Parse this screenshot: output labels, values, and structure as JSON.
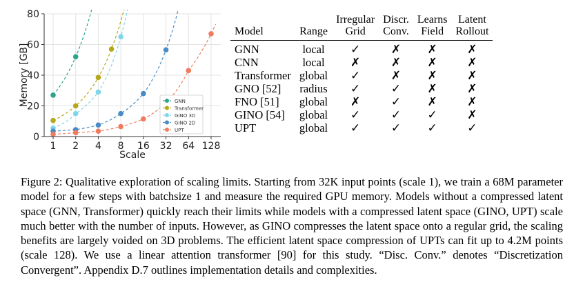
{
  "chart_data": {
    "type": "line",
    "xlabel": "Scale",
    "ylabel": "Memory [GB]",
    "x": [
      1,
      2,
      4,
      8,
      16,
      32,
      64,
      128
    ],
    "x_scale": "log2",
    "xtick_labels": [
      "1",
      "2",
      "4",
      "8",
      "16",
      "32",
      "64",
      "128"
    ],
    "ylim": [
      0,
      80
    ],
    "yticks": [
      0,
      20,
      40,
      60,
      80
    ],
    "legend_position": "lower-right",
    "series": [
      {
        "name": "GNN",
        "color": "#2ca58d",
        "x": [
          1,
          2
        ],
        "values": [
          27,
          52
        ]
      },
      {
        "name": "Transformer",
        "color": "#b5a718",
        "x": [
          1,
          2,
          4,
          6
        ],
        "values": [
          10.5,
          20,
          38.5,
          57
        ]
      },
      {
        "name": "GINO 3D",
        "color": "#7fd6ea",
        "x": [
          1,
          2,
          4,
          8
        ],
        "values": [
          5.5,
          15,
          29,
          65
        ]
      },
      {
        "name": "GINO 2D",
        "color": "#4a8bc6",
        "x": [
          1,
          2,
          4,
          8,
          16,
          32
        ],
        "values": [
          3.5,
          4.5,
          7.5,
          15,
          28,
          56.5
        ]
      },
      {
        "name": "UPT",
        "color": "#f07b5f",
        "x": [
          1,
          2,
          4,
          8,
          16,
          32,
          64,
          128
        ],
        "values": [
          1.5,
          2.5,
          3.5,
          6.5,
          11.5,
          22,
          43,
          67
        ]
      }
    ]
  },
  "table": {
    "headers": [
      {
        "line1": "Model",
        "line2": ""
      },
      {
        "line1": "Range",
        "line2": ""
      },
      {
        "line1": "Irregular",
        "line2": "Grid"
      },
      {
        "line1": "Discr.",
        "line2": "Conv."
      },
      {
        "line1": "Learns",
        "line2": "Field"
      },
      {
        "line1": "Latent",
        "line2": "Rollout"
      }
    ],
    "rows": [
      [
        "GNN",
        "local",
        "✓",
        "✗",
        "✗",
        "✗"
      ],
      [
        "CNN",
        "local",
        "✗",
        "✗",
        "✗",
        "✗"
      ],
      [
        "Transformer",
        "global",
        "✓",
        "✗",
        "✗",
        "✗"
      ],
      [
        "GNO [52]",
        "radius",
        "✓",
        "✓",
        "✗",
        "✗"
      ],
      [
        "FNO [51]",
        "global",
        "✗",
        "✓",
        "✗",
        "✗"
      ],
      [
        "GINO [54]",
        "global",
        "✓",
        "✓",
        "✓",
        "✗"
      ],
      [
        "UPT",
        "global",
        "✓",
        "✓",
        "✓",
        "✓"
      ]
    ]
  },
  "caption": "Figure 2: Qualitative exploration of scaling limits. Starting from 32K input points (scale 1), we train a 68M parameter model for a few steps with batchsize 1 and measure the required GPU memory. Models without a compressed latent space (GNN, Transformer) quickly reach their limits while models with a compressed latent space (GINO, UPT) scale much better with the number of inputs. However, as GINO compresses the latent space onto a regular grid, the scaling benefits are largely voided on 3D problems. The efficient latent space compression of UPTs can fit up to 4.2M points (scale 128). We use a linear attention transformer [90] for this study. “Disc. Conv.” denotes “Discretization Convergent”. Appendix D.7 outlines implementation details and complexities."
}
